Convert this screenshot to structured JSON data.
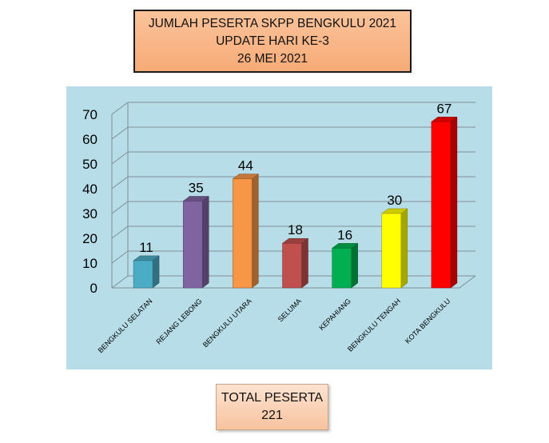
{
  "title": {
    "line1": "JUMLAH PESERTA SKPP BENGKULU 2021",
    "line2": "UPDATE HARI KE-3",
    "line3": "26 MEI 2021"
  },
  "total": {
    "label": "TOTAL PESERTA",
    "value": "221"
  },
  "chart_data": {
    "type": "bar",
    "categories": [
      "BENGKULU SELATAN",
      "REJANG LEBONG",
      "BENGKULU UTARA",
      "SELUMA",
      "KEPAHIANG",
      "BENGKULU TENGAH",
      "KOTA BENGKULU"
    ],
    "values": [
      11,
      35,
      44,
      18,
      16,
      30,
      67
    ],
    "colors": [
      "#4bacc6",
      "#8064a2",
      "#f79646",
      "#c0504d",
      "#00b050",
      "#ffff00",
      "#ff0000"
    ],
    "yticks": [
      0,
      10,
      20,
      30,
      40,
      50,
      60,
      70
    ],
    "ylim": [
      0,
      70
    ],
    "grid": true,
    "style": "3d-bar"
  }
}
